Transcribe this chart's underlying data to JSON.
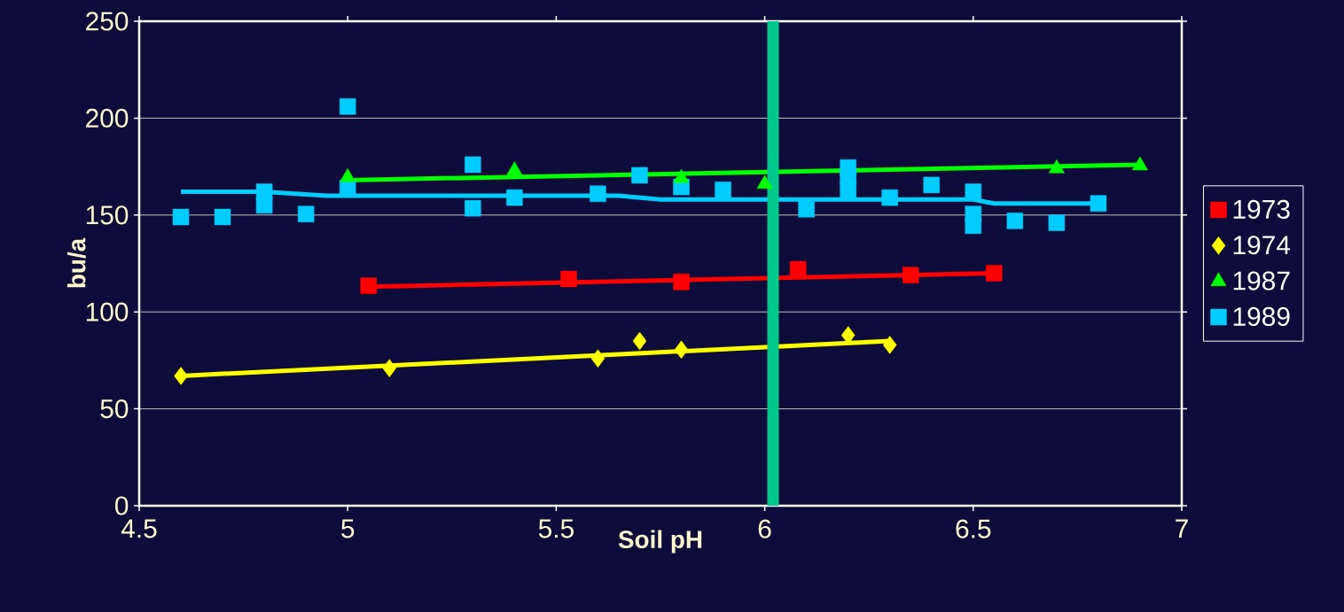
{
  "chart_data": {
    "type": "scatter",
    "xlabel": "Soil pH",
    "ylabel": "bu/a",
    "xlim": [
      4.5,
      7
    ],
    "xticks": [
      4.5,
      5,
      5.5,
      6,
      6.5,
      7
    ],
    "ylim": [
      0,
      250
    ],
    "yticks": [
      0,
      50,
      100,
      150,
      200,
      250
    ],
    "grid": "y",
    "legend": "right",
    "series": [
      {
        "name": "1973",
        "color": "#ff0000",
        "marker": "square",
        "x": [
          5.05,
          5.53,
          5.8,
          6.08,
          6.35,
          6.55
        ],
        "values": [
          113.5,
          117,
          115.5,
          122,
          119,
          120
        ]
      },
      {
        "name": "1974",
        "color": "#ffff00",
        "marker": "diamond",
        "x": [
          4.6,
          5.1,
          5.6,
          5.7,
          5.8,
          6.2,
          6.3
        ],
        "values": [
          67,
          71,
          76,
          85,
          80.5,
          88,
          83
        ]
      },
      {
        "name": "1987",
        "color": "#00ff00",
        "marker": "triangle",
        "x": [
          5.0,
          5.4,
          5.8,
          6.0,
          6.7,
          6.9
        ],
        "values": [
          169.5,
          173,
          169,
          166,
          174,
          175.5
        ]
      },
      {
        "name": "1989",
        "color": "#00ccff",
        "marker": "square",
        "x": [
          4.6,
          4.7,
          4.8,
          4.8,
          4.9,
          5.0,
          5.0,
          5.3,
          5.3,
          5.4,
          5.6,
          5.7,
          5.8,
          5.9,
          6.1,
          6.2,
          6.2,
          6.2,
          6.3,
          6.4,
          6.5,
          6.5,
          6.5,
          6.6,
          6.7,
          6.8
        ],
        "values": [
          149,
          149,
          162,
          155,
          150.5,
          206,
          164,
          176,
          153.5,
          159,
          161,
          170.5,
          164.5,
          163,
          153,
          174.5,
          169.5,
          163,
          159,
          165.5,
          162,
          150.5,
          144.5,
          147,
          146,
          156
        ]
      },
      {
        "type": "line",
        "color": "#ff0000",
        "x": [
          5.05,
          6.55
        ],
        "values": [
          113,
          120
        ]
      },
      {
        "type": "line",
        "color": "#ffff00",
        "x": [
          4.6,
          6.3
        ],
        "values": [
          67,
          85
        ]
      },
      {
        "type": "line",
        "color": "#00ff00",
        "x": [
          5.0,
          6.9
        ],
        "values": [
          168,
          176
        ]
      },
      {
        "type": "line",
        "color": "#00ccff",
        "x": [
          4.6,
          4.8,
          4.95,
          5.65,
          5.75,
          6.5,
          6.55,
          6.8
        ],
        "values": [
          162,
          162,
          160,
          160,
          158,
          158,
          156,
          156
        ]
      }
    ],
    "ref_lines": [
      {
        "axis": "x",
        "value": 6.02,
        "color": "#00c88c"
      }
    ]
  }
}
